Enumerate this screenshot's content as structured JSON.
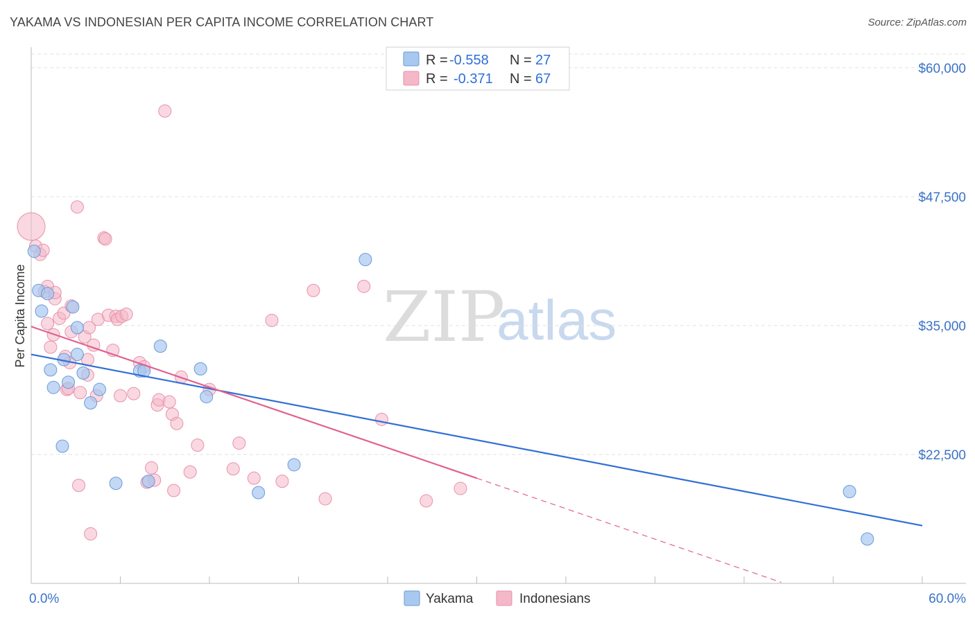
{
  "header": {
    "title": "YAKAMA VS INDONESIAN PER CAPITA INCOME CORRELATION CHART",
    "source": "Source: ZipAtlas.com"
  },
  "watermark": {
    "part1": "ZIP",
    "part2": "atlas"
  },
  "legend": {
    "rows": [
      {
        "r_label": "R =",
        "r_value": "-0.558",
        "n_label": "N =",
        "n_value": "27",
        "color": "#a8c8f0"
      },
      {
        "r_label": "R =",
        "r_value": "-0.371",
        "n_label": "N =",
        "n_value": "67",
        "color": "#f4b8c8"
      }
    ]
  },
  "colors": {
    "yakama_fill": "#a8c8f0",
    "yakama_stroke": "#6a9ad8",
    "yakama_line": "#2f6fd6",
    "indonesian_fill": "#f4b8c8",
    "indonesian_stroke": "#e890aa",
    "indonesian_line": "#e06090",
    "grid": "#e2e2e2",
    "axis": "#bbbbbb"
  },
  "chart_data": {
    "type": "scatter",
    "title": "YAKAMA VS INDONESIAN PER CAPITA INCOME CORRELATION CHART",
    "xlabel": "",
    "ylabel": "Per Capita Income",
    "xlim": [
      0,
      60
    ],
    "ylim": [
      10000,
      62000
    ],
    "x_tick_labels": [
      "0.0%",
      "60.0%"
    ],
    "y_ticks": [
      22500,
      35000,
      47500,
      60000
    ],
    "y_tick_labels": [
      "$22,500",
      "$35,000",
      "$47,500",
      "$60,000"
    ],
    "series": [
      {
        "name": "Yakama",
        "points": [
          [
            0.2,
            42200
          ],
          [
            0.5,
            38400
          ],
          [
            0.7,
            36400
          ],
          [
            1.1,
            38100
          ],
          [
            1.3,
            30700
          ],
          [
            1.5,
            29000
          ],
          [
            2.1,
            23300
          ],
          [
            2.2,
            31700
          ],
          [
            2.5,
            29500
          ],
          [
            2.8,
            36800
          ],
          [
            3.1,
            34800
          ],
          [
            3.1,
            32200
          ],
          [
            3.5,
            30400
          ],
          [
            4.0,
            27500
          ],
          [
            4.6,
            28800
          ],
          [
            5.7,
            19700
          ],
          [
            7.3,
            30600
          ],
          [
            7.6,
            30600
          ],
          [
            7.9,
            19900
          ],
          [
            8.7,
            33000
          ],
          [
            11.4,
            30800
          ],
          [
            11.8,
            28100
          ],
          [
            15.3,
            18800
          ],
          [
            17.7,
            21500
          ],
          [
            22.5,
            41400
          ],
          [
            55.1,
            18900
          ],
          [
            56.3,
            14300
          ]
        ],
        "trend": {
          "x": [
            0,
            60
          ],
          "y": [
            32200,
            15600
          ]
        }
      },
      {
        "name": "Indonesians",
        "points": [
          [
            0.0,
            44600
          ],
          [
            0.3,
            42700
          ],
          [
            0.6,
            41900
          ],
          [
            0.8,
            42300
          ],
          [
            0.9,
            38300
          ],
          [
            1.1,
            35200
          ],
          [
            1.1,
            38800
          ],
          [
            1.3,
            32900
          ],
          [
            1.5,
            34100
          ],
          [
            1.6,
            37600
          ],
          [
            1.6,
            38200
          ],
          [
            1.9,
            35700
          ],
          [
            2.2,
            36200
          ],
          [
            2.3,
            32000
          ],
          [
            2.4,
            28800
          ],
          [
            2.5,
            28900
          ],
          [
            2.6,
            31400
          ],
          [
            2.7,
            36900
          ],
          [
            2.7,
            34400
          ],
          [
            3.1,
            46500
          ],
          [
            3.2,
            19500
          ],
          [
            3.3,
            28500
          ],
          [
            3.6,
            33900
          ],
          [
            3.8,
            30200
          ],
          [
            3.8,
            31700
          ],
          [
            3.9,
            34800
          ],
          [
            4.0,
            14800
          ],
          [
            4.2,
            33100
          ],
          [
            4.4,
            28200
          ],
          [
            4.5,
            35600
          ],
          [
            4.9,
            43500
          ],
          [
            5.0,
            43400
          ],
          [
            5.2,
            36000
          ],
          [
            5.5,
            32600
          ],
          [
            5.7,
            35900
          ],
          [
            5.8,
            35600
          ],
          [
            6.0,
            28200
          ],
          [
            6.1,
            35900
          ],
          [
            6.4,
            36100
          ],
          [
            6.9,
            28400
          ],
          [
            7.3,
            31400
          ],
          [
            7.6,
            31000
          ],
          [
            7.8,
            19800
          ],
          [
            8.1,
            21200
          ],
          [
            8.3,
            20000
          ],
          [
            8.5,
            27300
          ],
          [
            8.6,
            27800
          ],
          [
            9.0,
            55800
          ],
          [
            9.3,
            27600
          ],
          [
            9.5,
            26400
          ],
          [
            9.6,
            19000
          ],
          [
            9.8,
            25500
          ],
          [
            10.1,
            30000
          ],
          [
            10.7,
            20800
          ],
          [
            11.2,
            23400
          ],
          [
            12.0,
            28800
          ],
          [
            13.6,
            21100
          ],
          [
            14.0,
            23600
          ],
          [
            15.0,
            20200
          ],
          [
            16.2,
            35500
          ],
          [
            16.9,
            19900
          ],
          [
            19.0,
            38400
          ],
          [
            19.8,
            18200
          ],
          [
            22.4,
            38800
          ],
          [
            23.6,
            25900
          ],
          [
            26.6,
            18000
          ],
          [
            28.9,
            19200
          ]
        ],
        "trend": {
          "x": [
            0,
            30
          ],
          "y": [
            34900,
            20200
          ]
        },
        "trend_dashed": {
          "x": [
            30,
            50.5
          ],
          "y": [
            20200,
            10100
          ]
        }
      }
    ],
    "legend_position": "top-center"
  },
  "bottom_legend": {
    "items": [
      {
        "label": "Yakama",
        "color": "#a8c8f0"
      },
      {
        "label": "Indonesians",
        "color": "#f4b8c8"
      }
    ]
  }
}
